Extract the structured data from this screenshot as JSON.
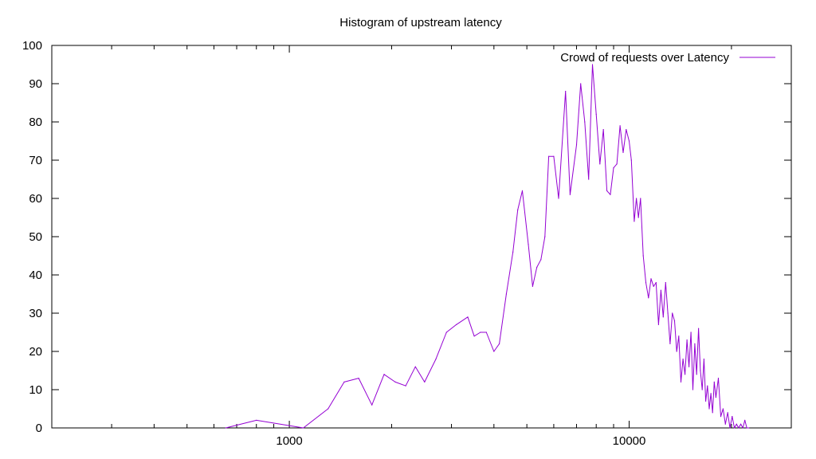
{
  "chart_data": {
    "type": "line",
    "title": "Histogram of upstream latency",
    "xlabel": "",
    "ylabel": "",
    "x_scale": "log",
    "xlim": [
      200,
      30000
    ],
    "ylim": [
      0,
      100
    ],
    "grid": false,
    "legend_position": "top-right",
    "x_ticks": [
      {
        "value": 1000,
        "label": "1000"
      },
      {
        "value": 10000,
        "label": "10000"
      }
    ],
    "y_ticks": [
      {
        "value": 0,
        "label": "0"
      },
      {
        "value": 10,
        "label": "10"
      },
      {
        "value": 20,
        "label": "20"
      },
      {
        "value": 30,
        "label": "30"
      },
      {
        "value": 40,
        "label": "40"
      },
      {
        "value": 50,
        "label": "50"
      },
      {
        "value": 60,
        "label": "60"
      },
      {
        "value": 70,
        "label": "70"
      },
      {
        "value": 80,
        "label": "80"
      },
      {
        "value": 90,
        "label": "90"
      },
      {
        "value": 100,
        "label": "100"
      }
    ],
    "series": [
      {
        "name": "Crowd of requests over Latency",
        "color": "#9400d3",
        "x": [
          650,
          800,
          1100,
          1300,
          1450,
          1600,
          1750,
          1900,
          2050,
          2200,
          2350,
          2500,
          2700,
          2900,
          3100,
          3350,
          3500,
          3650,
          3800,
          4000,
          4150,
          4350,
          4550,
          4700,
          4850,
          5050,
          5200,
          5350,
          5500,
          5650,
          5800,
          6000,
          6200,
          6500,
          6700,
          7000,
          7200,
          7400,
          7600,
          7800,
          8000,
          8200,
          8400,
          8600,
          8800,
          9000,
          9200,
          9400,
          9600,
          9800,
          10000,
          10150,
          10350,
          10500,
          10650,
          10800,
          11000,
          11200,
          11400,
          11600,
          11800,
          12000,
          12200,
          12400,
          12600,
          12800,
          13000,
          13200,
          13400,
          13600,
          13800,
          14000,
          14200,
          14400,
          14600,
          14800,
          15000,
          15200,
          15400,
          15600,
          15800,
          16000,
          16200,
          16400,
          16600,
          16800,
          17000,
          17200,
          17400,
          17600,
          17800,
          18000,
          18300,
          18600,
          18900,
          19200,
          19500,
          19800,
          20100,
          20400,
          20700,
          21000,
          21300,
          21600,
          21900,
          22200,
          22500
        ],
        "y": [
          0,
          2,
          0,
          5,
          12,
          13,
          6,
          14,
          12,
          11,
          16,
          12,
          18,
          25,
          27,
          29,
          24,
          25,
          25,
          20,
          22,
          35,
          46,
          57,
          62,
          48,
          37,
          42,
          44,
          50,
          71,
          71,
          60,
          88,
          61,
          74,
          90,
          80,
          65,
          95,
          82,
          69,
          78,
          62,
          61,
          68,
          69,
          79,
          72,
          78,
          75,
          70,
          54,
          60,
          55,
          60,
          45,
          38,
          34,
          39,
          37,
          38,
          27,
          36,
          29,
          38,
          30,
          22,
          30,
          28,
          20,
          24,
          12,
          18,
          14,
          23,
          16,
          25,
          10,
          22,
          14,
          26,
          15,
          10,
          18,
          7,
          11,
          5,
          9,
          4,
          12,
          8,
          13,
          3,
          5,
          1,
          4,
          0,
          3,
          0,
          1,
          0,
          1,
          0,
          2,
          0,
          0
        ]
      }
    ]
  }
}
